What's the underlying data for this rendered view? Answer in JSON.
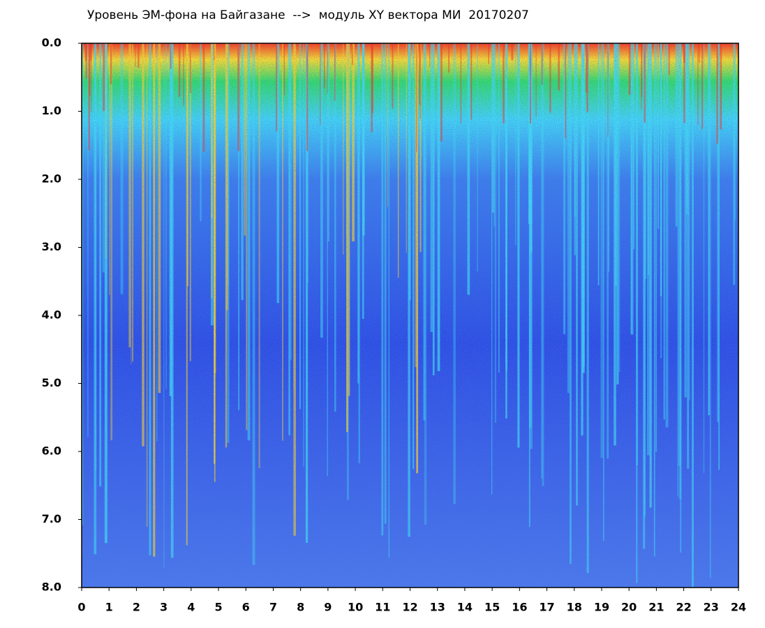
{
  "chart_data": {
    "type": "heatmap",
    "title": "Уровень ЭМ-фона на Байгазане  -->  модуль XY вектора МИ  20170207",
    "xlim": [
      0,
      24
    ],
    "xticks": [
      0,
      1,
      2,
      3,
      4,
      5,
      6,
      7,
      8,
      9,
      10,
      11,
      12,
      13,
      14,
      15,
      16,
      17,
      18,
      19,
      20,
      21,
      22,
      23,
      24
    ],
    "ylim": [
      0,
      8
    ],
    "y_inverted": true,
    "yticks": [
      {
        "value": 0,
        "label": "0.0"
      },
      {
        "value": 1,
        "label": "1.0"
      },
      {
        "value": 2,
        "label": "2.0"
      },
      {
        "value": 3,
        "label": "3.0"
      },
      {
        "value": 4,
        "label": "4.0"
      },
      {
        "value": 5,
        "label": "5.0"
      },
      {
        "value": 6,
        "label": "6.0"
      },
      {
        "value": 7,
        "label": "7.0"
      },
      {
        "value": 8,
        "label": "8.0"
      }
    ]
  }
}
